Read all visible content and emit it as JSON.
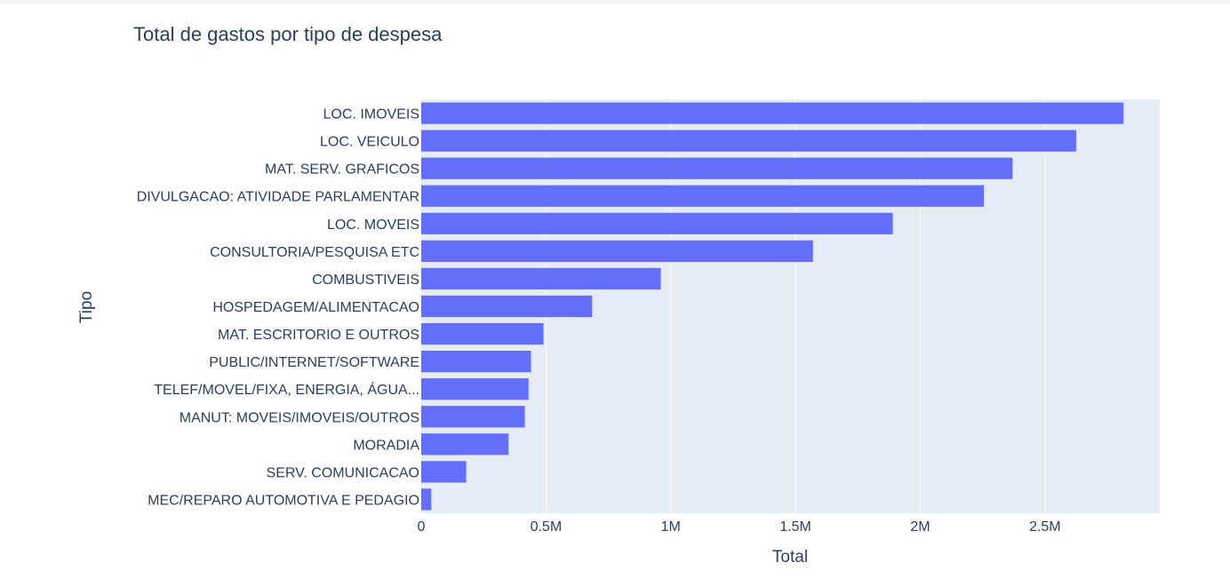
{
  "chart_data": {
    "type": "bar",
    "orientation": "horizontal",
    "title": "Total de gastos por tipo de despesa",
    "xlabel": "Total",
    "ylabel": "Tipo",
    "xlim": [
      0,
      2960000
    ],
    "x_ticks": [
      0,
      500000,
      1000000,
      1500000,
      2000000,
      2500000
    ],
    "x_tick_labels": [
      "0",
      "0.5M",
      "1M",
      "1.5M",
      "2M",
      "2.5M"
    ],
    "categories": [
      "LOC. IMOVEIS",
      "LOC. VEICULO",
      "MAT. SERV. GRAFICOS",
      "DIVULGACAO: ATIVIDADE PARLAMENTAR",
      "LOC. MOVEIS",
      "CONSULTORIA/PESQUISA ETC",
      "COMBUSTIVEIS",
      "HOSPEDAGEM/ALIMENTACAO",
      "MAT. ESCRITORIO E OUTROS",
      "PUBLIC/INTERNET/SOFTWARE",
      "TELEF/MOVEL/FIXA, ENERGIA, ÁGUA...",
      "MANUT: MOVEIS/IMOVEIS/OUTROS",
      "MORADIA",
      "SERV. COMUNICACAO",
      "MEC/REPARO AUTOMOTIVA E PEDAGIO"
    ],
    "values": [
      2815000,
      2625000,
      2370000,
      2255000,
      1890000,
      1570000,
      960000,
      685000,
      490000,
      440000,
      430000,
      415000,
      350000,
      180000,
      40000
    ],
    "grid": true
  },
  "colors": {
    "bar": "#636efa",
    "plot_bg": "#e5ecf6",
    "grid": "#ffffff",
    "text": "#2a3f5f"
  }
}
